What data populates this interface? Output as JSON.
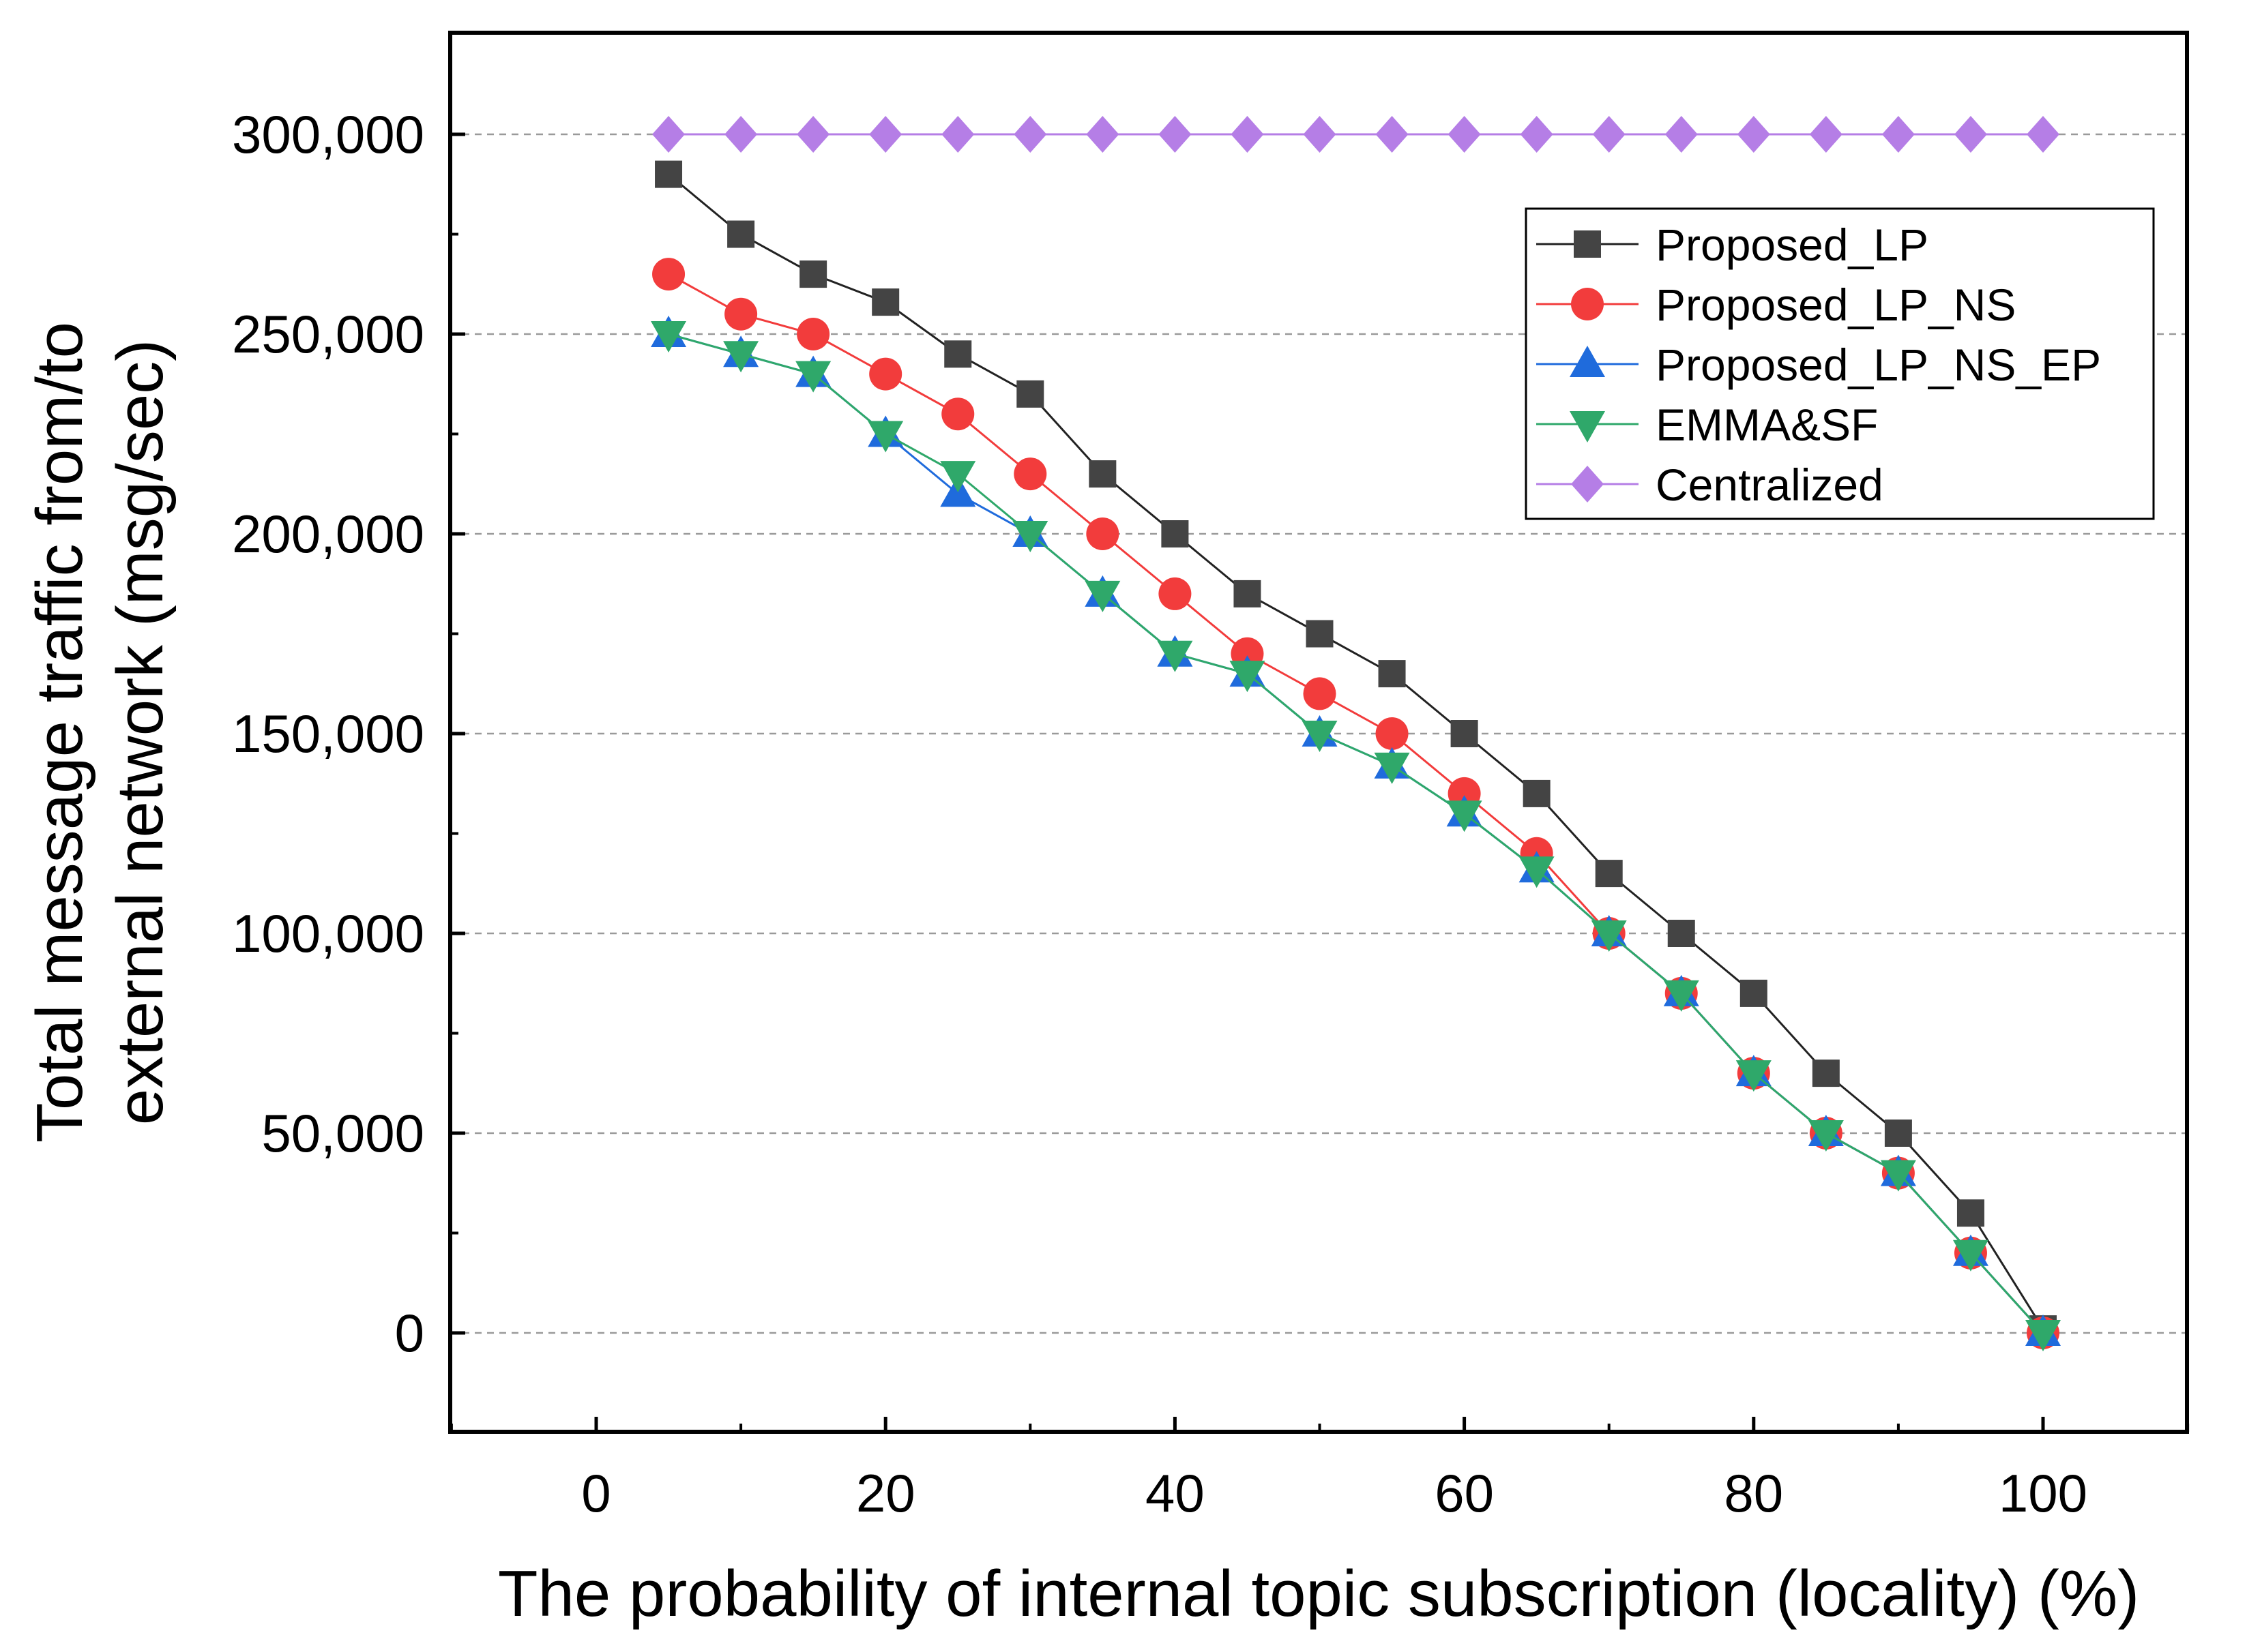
{
  "chart_data": {
    "type": "line",
    "title": "",
    "xlabel": "The probability of internal topic subscription (locality) (%)",
    "ylabel_lines": [
      "Total message traffic from/to",
      "external network (msg/sec)"
    ],
    "xlim": [
      -10,
      110
    ],
    "ylim": [
      -25000,
      325000
    ],
    "xticks": [
      0,
      20,
      40,
      60,
      80,
      100
    ],
    "xtick_labels": [
      "0",
      "20",
      "40",
      "60",
      "80",
      "100"
    ],
    "yticks": [
      0,
      50000,
      100000,
      150000,
      200000,
      250000,
      300000
    ],
    "ytick_labels": [
      "0",
      "50,000",
      "100,000",
      "150,000",
      "200,000",
      "250,000",
      "300,000"
    ],
    "grid": "horizontal-dashed",
    "legend_position": "top-right",
    "x": [
      5,
      10,
      15,
      20,
      25,
      30,
      35,
      40,
      45,
      50,
      55,
      60,
      65,
      70,
      75,
      80,
      85,
      90,
      95,
      100
    ],
    "series": [
      {
        "name": "Proposed_LP",
        "marker": "square",
        "color": "#444444",
        "line_color": "#222222",
        "values": [
          290000,
          275000,
          265000,
          258000,
          245000,
          235000,
          215000,
          200000,
          185000,
          175000,
          165000,
          150000,
          135000,
          115000,
          100000,
          85000,
          65000,
          50000,
          30000,
          1000
        ]
      },
      {
        "name": "Proposed_LP_NS",
        "marker": "circle",
        "color": "#f23c3c",
        "line_color": "#f23c3c",
        "values": [
          265000,
          255000,
          250000,
          240000,
          230000,
          215000,
          200000,
          185000,
          170000,
          160000,
          150000,
          135000,
          120000,
          100000,
          85000,
          65000,
          50000,
          40000,
          20000,
          0
        ]
      },
      {
        "name": "Proposed_LP_NS_EP",
        "marker": "triangle-up",
        "color": "#1f6bdc",
        "line_color": "#1f6bdc",
        "values": [
          250000,
          245000,
          240000,
          225000,
          210000,
          200000,
          185000,
          170000,
          165000,
          150000,
          142000,
          130000,
          116000,
          100000,
          85000,
          65000,
          50000,
          40000,
          20000,
          0
        ]
      },
      {
        "name": "EMMA&SF",
        "marker": "triangle-down",
        "color": "#2fa86a",
        "line_color": "#2fa86a",
        "values": [
          250000,
          245000,
          240000,
          225000,
          215000,
          200000,
          185000,
          170000,
          165000,
          150000,
          142000,
          130000,
          116000,
          100000,
          85000,
          65000,
          50000,
          40000,
          20000,
          0
        ]
      },
      {
        "name": "Centralized",
        "marker": "diamond",
        "color": "#b57ee6",
        "line_color": "#b57ee6",
        "values": [
          300000,
          300000,
          300000,
          300000,
          300000,
          300000,
          300000,
          300000,
          300000,
          300000,
          300000,
          300000,
          300000,
          300000,
          300000,
          300000,
          300000,
          300000,
          300000,
          300000
        ]
      }
    ]
  }
}
